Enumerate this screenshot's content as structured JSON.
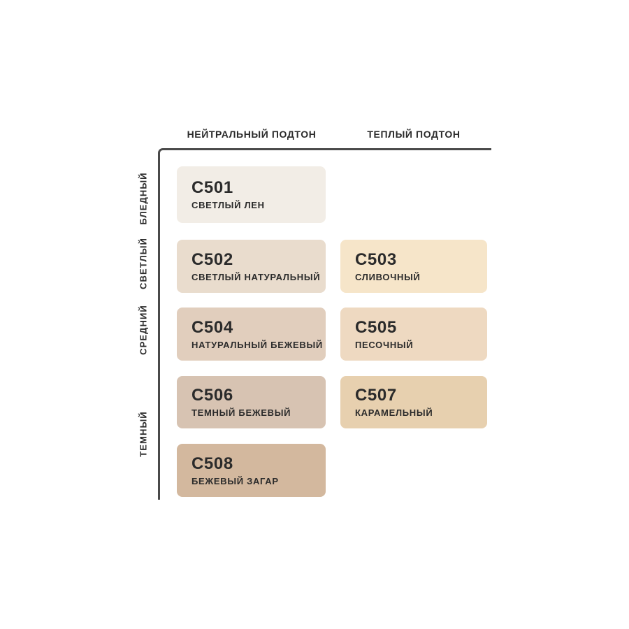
{
  "theme": {
    "background": "#FFFFFF",
    "axis_color": "#4A4A4A",
    "text_color": "#2B2B2B"
  },
  "matrix": {
    "column_headers": [
      "НЕЙТРАЛЬНЫЙ ПОДТОН",
      "ТЕПЛЫЙ ПОДТОН"
    ],
    "row_labels": [
      "БЛЕДНЫЙ",
      "СВЕТЛЫЙ",
      "СРЕДНИЙ",
      "ТЕМНЫЙ"
    ],
    "swatches": [
      {
        "code": "C501",
        "name": "СВЕТЛЫЙ ЛЕН",
        "color": "#F2EDE6",
        "row": "БЛЕДНЫЙ",
        "column": "НЕЙТРАЛЬНЫЙ ПОДТОН"
      },
      {
        "code": "C502",
        "name": "СВЕТЛЫЙ НАТУРАЛЬНЫЙ",
        "color": "#E9DCCD",
        "row": "СВЕТЛЫЙ",
        "column": "НЕЙТРАЛЬНЫЙ ПОДТОН"
      },
      {
        "code": "C503",
        "name": "СЛИВОЧНЫЙ",
        "color": "#F6E5C9",
        "row": "СВЕТЛЫЙ",
        "column": "ТЕПЛЫЙ ПОДТОН"
      },
      {
        "code": "C504",
        "name": "НАТУРАЛЬНЫЙ БЕЖЕВЫЙ",
        "color": "#E1CEBD",
        "row": "СРЕДНИЙ",
        "column": "НЕЙТРАЛЬНЫЙ ПОДТОН"
      },
      {
        "code": "C505",
        "name": "ПЕСОЧНЫЙ",
        "color": "#EED9C1",
        "row": "СРЕДНИЙ",
        "column": "ТЕПЛЫЙ ПОДТОН"
      },
      {
        "code": "C506",
        "name": "ТЕМНЫЙ БЕЖЕВЫЙ",
        "color": "#D7C3B2",
        "row": "ТЕМНЫЙ",
        "column": "НЕЙТРАЛЬНЫЙ ПОДТОН"
      },
      {
        "code": "C507",
        "name": "КАРАМЕЛЬНЫЙ",
        "color": "#E7D0AF",
        "row": "ТЕМНЫЙ",
        "column": "ТЕПЛЫЙ ПОДТОН"
      },
      {
        "code": "C508",
        "name": "БЕЖЕВЫЙ ЗАГАР",
        "color": "#D3B89E",
        "row": "ТЕМНЫЙ",
        "column": "НЕЙТРАЛЬНЫЙ ПОДТОН"
      }
    ]
  }
}
